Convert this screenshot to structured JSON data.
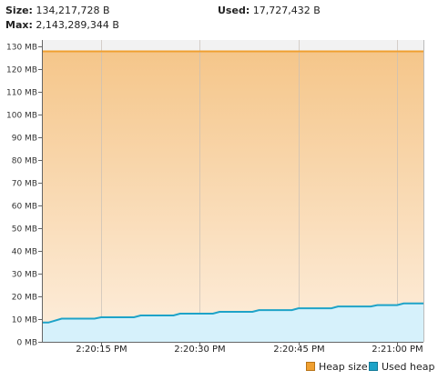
{
  "stats": {
    "size_label": "Size:",
    "size_value": "134,217,728 B",
    "used_label": "Used:",
    "used_value": "17,727,432 B",
    "max_label": "Max:",
    "max_value": "2,143,289,344 B"
  },
  "colors": {
    "heap_size": "#f0a030",
    "heap_fill_top": "#f5c68a",
    "heap_fill_bottom": "#fdeedd",
    "used_heap": "#1ea3c8",
    "used_fill": "#d6f1fb",
    "grid": "#c8c0b8"
  },
  "chart_data": {
    "type": "area",
    "y_ticks": [
      "0 MB",
      "10 MB",
      "20 MB",
      "30 MB",
      "40 MB",
      "50 MB",
      "60 MB",
      "70 MB",
      "80 MB",
      "90 MB",
      "100 MB",
      "110 MB",
      "120 MB",
      "130 MB"
    ],
    "ylim": [
      0,
      130
    ],
    "x_ticks": [
      "2:20:15 PM",
      "2:20:30 PM",
      "2:20:45 PM",
      "2:21:00 PM"
    ],
    "xlim": [
      "2:20:06 PM",
      "2:21:04 PM"
    ],
    "grid": true,
    "legend_position": "bottom-right",
    "series": [
      {
        "name": "Heap size",
        "x": [
          "2:20:06 PM",
          "2:21:04 PM"
        ],
        "values": [
          128,
          128
        ]
      },
      {
        "name": "Used heap",
        "x": [
          "2:20:06 PM",
          "2:20:07 PM",
          "2:20:09 PM",
          "2:20:14 PM",
          "2:20:15 PM",
          "2:20:20 PM",
          "2:20:21 PM",
          "2:20:26 PM",
          "2:20:27 PM",
          "2:20:32 PM",
          "2:20:33 PM",
          "2:20:38 PM",
          "2:20:39 PM",
          "2:20:44 PM",
          "2:20:45 PM",
          "2:20:50 PM",
          "2:20:51 PM",
          "2:20:56 PM",
          "2:20:57 PM",
          "2:21:00 PM",
          "2:21:01 PM",
          "2:21:04 PM"
        ],
        "values": [
          8.5,
          8.5,
          10.2,
          10.2,
          10.8,
          10.8,
          11.6,
          11.6,
          12.4,
          12.4,
          13.2,
          13.2,
          14.0,
          14.0,
          14.8,
          14.8,
          15.6,
          15.6,
          16.2,
          16.2,
          16.9,
          16.9
        ]
      }
    ]
  }
}
